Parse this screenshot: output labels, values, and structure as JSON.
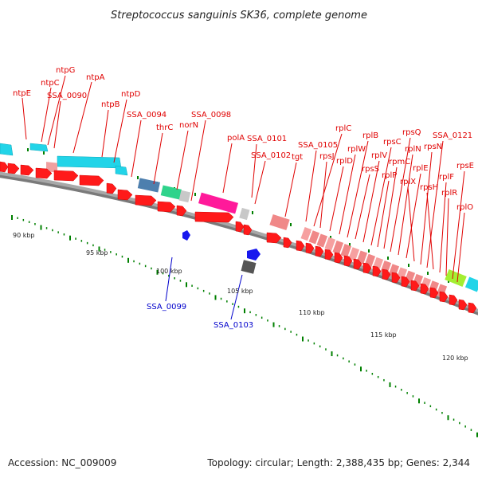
{
  "title": "Streptococcus sanguinis SK36, complete genome",
  "footer": {
    "accession": "Accession: NC_009009",
    "summary": "Topology: circular; Length: 2,388,435 bp; Genes: 2,344"
  },
  "colors": {
    "forward_gene": "#ff1a1a",
    "minus_label": "#0000cc",
    "backbone": "#a8a8a8",
    "ticks": "#008000"
  },
  "scale_labels": [
    "90 kbp",
    "95 kbp",
    "100 kbp",
    "105 kbp",
    "110 kbp",
    "115 kbp",
    "120 kbp"
  ],
  "labels_upper": [
    "ntpE",
    "ntpC",
    "ntpG",
    "SSA_0090",
    "ntpA",
    "ntpB",
    "ntpD",
    "SSA_0094",
    "thrC",
    "norN",
    "SSA_0098",
    "polA",
    "SSA_0101",
    "SSA_0102",
    "tgt",
    "SSA_0105",
    "rplC",
    "rpsJ",
    "rplD",
    "rplW",
    "rplB",
    "rpsS",
    "rplV",
    "rpsC",
    "rplP",
    "rpmC",
    "rpsQ",
    "rplN",
    "rplE",
    "rplX",
    "rpsN",
    "SSA_0121",
    "rpsH",
    "rplF",
    "rplR",
    "rpsE",
    "rplO"
  ],
  "labels_lower": [
    "SSA_0099",
    "SSA_0103"
  ]
}
